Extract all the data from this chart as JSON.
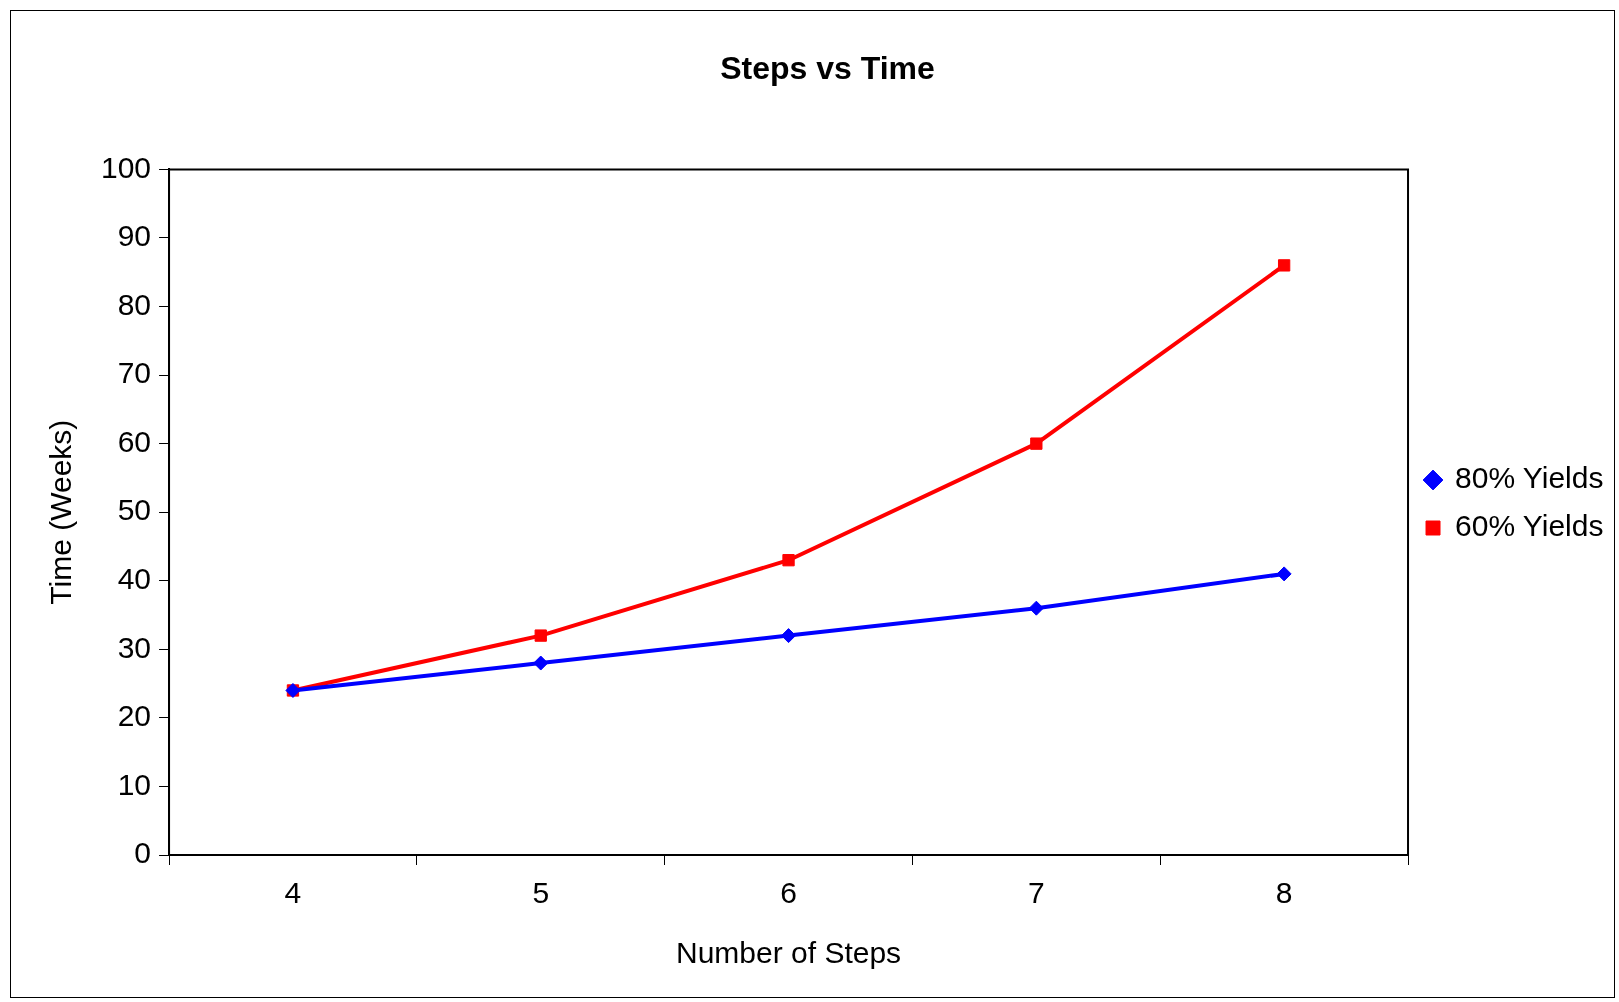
{
  "chart_data": {
    "type": "line",
    "title": "Steps vs Time",
    "xlabel": "Number of Steps",
    "ylabel": "Time (Weeks)",
    "categories": [
      "4",
      "5",
      "6",
      "7",
      "8"
    ],
    "series": [
      {
        "name": "80% Yields",
        "color": "#0000ff",
        "marker": "diamond",
        "values": [
          24,
          28,
          32,
          36,
          41
        ]
      },
      {
        "name": "60% Yields",
        "color": "#ff0000",
        "marker": "square",
        "values": [
          24,
          32,
          43,
          60,
          86
        ]
      }
    ],
    "ylim": [
      0,
      100
    ],
    "yticks": [
      0,
      10,
      20,
      30,
      40,
      50,
      60,
      70,
      80,
      90,
      100
    ],
    "grid": false,
    "legend": "right",
    "line_style": "solid"
  }
}
